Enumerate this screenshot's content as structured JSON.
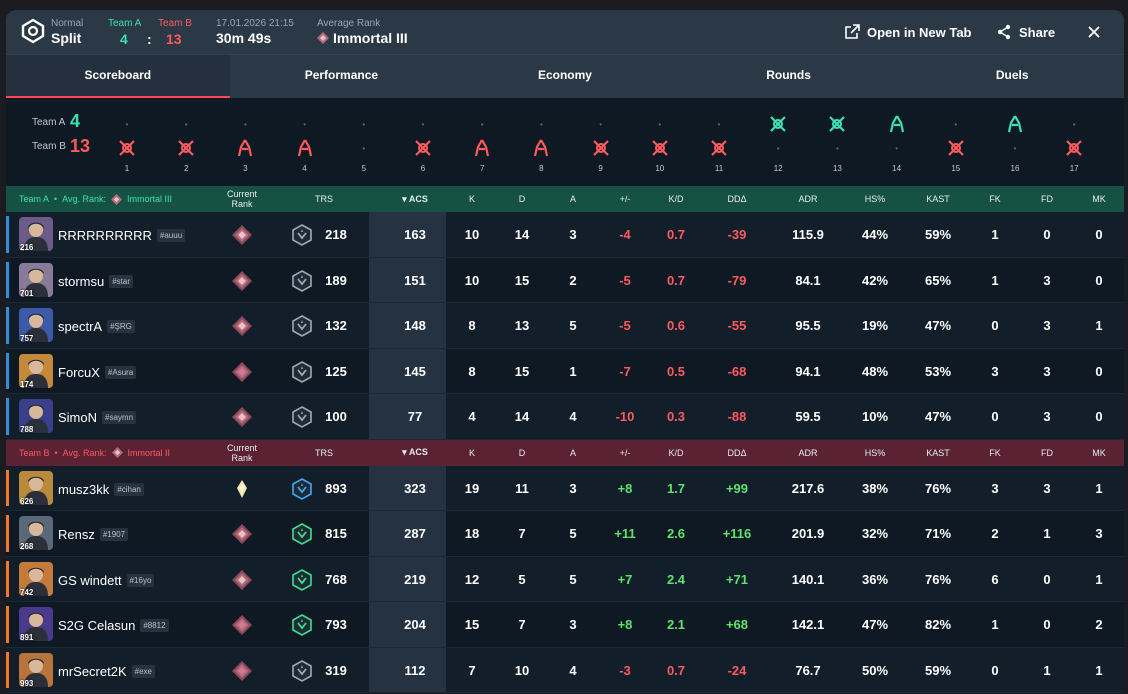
{
  "header": {
    "mode_label": "Normal",
    "map": "Split",
    "team_a_label": "Team A",
    "team_b_label": "Team B",
    "team_a_score": "4",
    "score_sep": ":",
    "team_b_score": "13",
    "datetime": "17.01.2026 21:15",
    "duration": "30m 49s",
    "avg_rank_label": "Average Rank",
    "avg_rank": "Immortal III",
    "open_new_tab": "Open in New Tab",
    "share": "Share"
  },
  "tabs": [
    "Scoreboard",
    "Performance",
    "Economy",
    "Rounds",
    "Duels"
  ],
  "rounds": {
    "team_a_label": "Team A",
    "team_b_label": "Team B",
    "team_a_score": "4",
    "team_b_score": "13",
    "numbers": [
      "1",
      "2",
      "3",
      "4",
      "5",
      "6",
      "7",
      "8",
      "9",
      "10",
      "11",
      "12",
      "13",
      "14",
      "15",
      "16",
      "17"
    ],
    "winners": [
      "B",
      "B",
      "B",
      "B",
      "B",
      "B",
      "B",
      "B",
      "B",
      "B",
      "B",
      "A",
      "A",
      "A",
      "B",
      "A",
      "B"
    ],
    "win_icons": [
      "elim",
      "elim",
      "defuse",
      "defuse",
      "none",
      "elim",
      "defuse",
      "defuse",
      "elim",
      "elim",
      "elim",
      "elim",
      "elim",
      "defuse",
      "elim",
      "defuse",
      "elim"
    ]
  },
  "columns": [
    "Current Rank",
    "TRS",
    "ACS",
    "K",
    "D",
    "A",
    "+/-",
    "K/D",
    "DDΔ",
    "ADR",
    "HS%",
    "KAST",
    "FK",
    "FD",
    "MK"
  ],
  "team_a": {
    "name": "Team A",
    "avg_rank_label": "Avg. Rank:",
    "avg_rank": "Immortal III",
    "color": "#3ee0b0",
    "players": [
      {
        "name": "RRRRRRRRRR",
        "tag": "#auuu",
        "level": "216",
        "rank": "immortal",
        "trs_tier": "silver",
        "trs": "218",
        "acs": "163",
        "k": "10",
        "d": "14",
        "a": "3",
        "pm": "-4",
        "kd": "0.7",
        "dd": "-39",
        "adr": "115.9",
        "hs": "44%",
        "kast": "59%",
        "fk": "1",
        "fd": "0",
        "mk": "0"
      },
      {
        "name": "stormsu",
        "tag": "#star",
        "level": "701",
        "rank": "immortal",
        "trs_tier": "silver",
        "trs": "189",
        "acs": "151",
        "k": "10",
        "d": "15",
        "a": "2",
        "pm": "-5",
        "kd": "0.7",
        "dd": "-79",
        "adr": "84.1",
        "hs": "42%",
        "kast": "65%",
        "fk": "1",
        "fd": "3",
        "mk": "0"
      },
      {
        "name": "spectrA",
        "tag": "#ŞRG",
        "level": "757",
        "rank": "immortal",
        "trs_tier": "silver",
        "trs": "132",
        "acs": "148",
        "k": "8",
        "d": "13",
        "a": "5",
        "pm": "-5",
        "kd": "0.6",
        "dd": "-55",
        "adr": "95.5",
        "hs": "19%",
        "kast": "47%",
        "fk": "0",
        "fd": "3",
        "mk": "1"
      },
      {
        "name": "ForcuX",
        "tag": "#Asura",
        "level": "174",
        "rank": "immortal2",
        "trs_tier": "silver",
        "trs": "125",
        "acs": "145",
        "k": "8",
        "d": "15",
        "a": "1",
        "pm": "-7",
        "kd": "0.5",
        "dd": "-68",
        "adr": "94.1",
        "hs": "48%",
        "kast": "53%",
        "fk": "3",
        "fd": "3",
        "mk": "0"
      },
      {
        "name": "SimoN",
        "tag": "#saymn",
        "level": "788",
        "rank": "immortal",
        "trs_tier": "silver",
        "trs": "100",
        "acs": "77",
        "k": "4",
        "d": "14",
        "a": "4",
        "pm": "-10",
        "kd": "0.3",
        "dd": "-88",
        "adr": "59.5",
        "hs": "10%",
        "kast": "47%",
        "fk": "0",
        "fd": "3",
        "mk": "0"
      }
    ]
  },
  "team_b": {
    "name": "Team B",
    "avg_rank_label": "Avg. Rank:",
    "avg_rank": "Immortal II",
    "color": "#ff5a5f",
    "players": [
      {
        "name": "musz3kk",
        "tag": "#cihan",
        "level": "626",
        "rank": "radiant",
        "trs_tier": "blue",
        "trs": "893",
        "acs": "323",
        "k": "19",
        "d": "11",
        "a": "3",
        "pm": "+8",
        "kd": "1.7",
        "dd": "+99",
        "adr": "217.6",
        "hs": "38%",
        "kast": "76%",
        "fk": "3",
        "fd": "3",
        "mk": "1"
      },
      {
        "name": "Rensz",
        "tag": "#1907",
        "level": "268",
        "rank": "immortal",
        "trs_tier": "green",
        "trs": "815",
        "acs": "287",
        "k": "18",
        "d": "7",
        "a": "5",
        "pm": "+11",
        "kd": "2.6",
        "dd": "+116",
        "adr": "201.9",
        "hs": "32%",
        "kast": "71%",
        "fk": "2",
        "fd": "1",
        "mk": "3"
      },
      {
        "name": "GS windett",
        "tag": "#16yo",
        "level": "742",
        "rank": "immortal",
        "trs_tier": "green",
        "trs": "768",
        "acs": "219",
        "k": "12",
        "d": "5",
        "a": "5",
        "pm": "+7",
        "kd": "2.4",
        "dd": "+71",
        "adr": "140.1",
        "hs": "36%",
        "kast": "76%",
        "fk": "6",
        "fd": "0",
        "mk": "1"
      },
      {
        "name": "S2G Celasun",
        "tag": "#8812",
        "level": "891",
        "rank": "immortal2",
        "trs_tier": "green",
        "trs": "793",
        "acs": "204",
        "k": "15",
        "d": "7",
        "a": "3",
        "pm": "+8",
        "kd": "2.1",
        "dd": "+68",
        "adr": "142.1",
        "hs": "47%",
        "kast": "82%",
        "fk": "1",
        "fd": "0",
        "mk": "2"
      },
      {
        "name": "mrSecret2K",
        "tag": "#exe",
        "level": "993",
        "rank": "immortal2",
        "trs_tier": "silver",
        "trs": "319",
        "acs": "112",
        "k": "7",
        "d": "10",
        "a": "4",
        "pm": "-3",
        "kd": "0.7",
        "dd": "-24",
        "adr": "76.7",
        "hs": "50%",
        "kast": "59%",
        "fk": "0",
        "fd": "1",
        "mk": "1"
      }
    ]
  },
  "agent_colors": [
    "#6b5a8a",
    "#8a7a9a",
    "#3d5aa8",
    "#c48a3a",
    "#3a3f8a",
    "#b88a3a",
    "#5a6878",
    "#c47a3a",
    "#4a3a8a",
    "#b8743a"
  ]
}
